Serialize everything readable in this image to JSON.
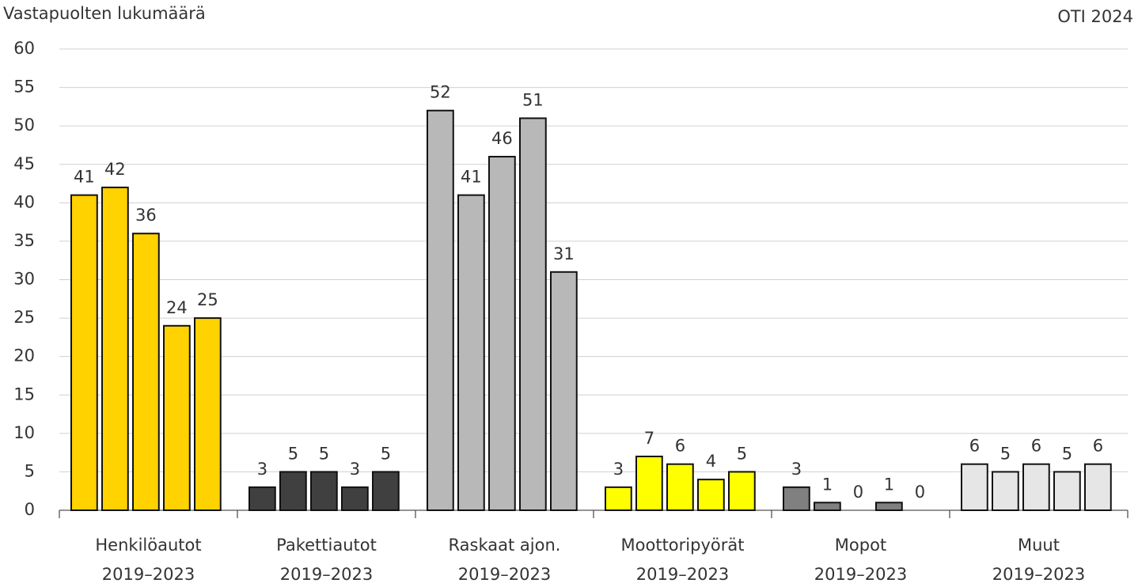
{
  "chart_data": {
    "type": "bar",
    "title": "Vastapuolten lukumäärä",
    "source": "OTI 2024",
    "groups": [
      {
        "label": "Henkilöautot",
        "period": "2019–2023",
        "color": "#ffd200",
        "values": [
          41,
          42,
          36,
          24,
          25
        ]
      },
      {
        "label": "Pakettiautot",
        "period": "2019–2023",
        "color": "#404040",
        "values": [
          3,
          5,
          5,
          3,
          5
        ]
      },
      {
        "label": "Raskaat ajon.",
        "period": "2019–2023",
        "color": "#b8b8b8",
        "values": [
          52,
          41,
          46,
          51,
          31
        ]
      },
      {
        "label": "Moottoripyörät",
        "period": "2019–2023",
        "color": "#ffff00",
        "values": [
          3,
          7,
          6,
          4,
          5
        ]
      },
      {
        "label": "Mopot",
        "period": "2019–2023",
        "color": "#808080",
        "values": [
          3,
          1,
          0,
          1,
          0
        ]
      },
      {
        "label": "Muut",
        "period": "2019–2023",
        "color": "#e6e6e6",
        "values": [
          6,
          5,
          6,
          5,
          6
        ]
      }
    ],
    "ylim": [
      0,
      60
    ],
    "yticks": [
      0,
      5,
      10,
      15,
      20,
      25,
      30,
      35,
      40,
      45,
      50,
      55,
      60
    ],
    "grid": true
  }
}
